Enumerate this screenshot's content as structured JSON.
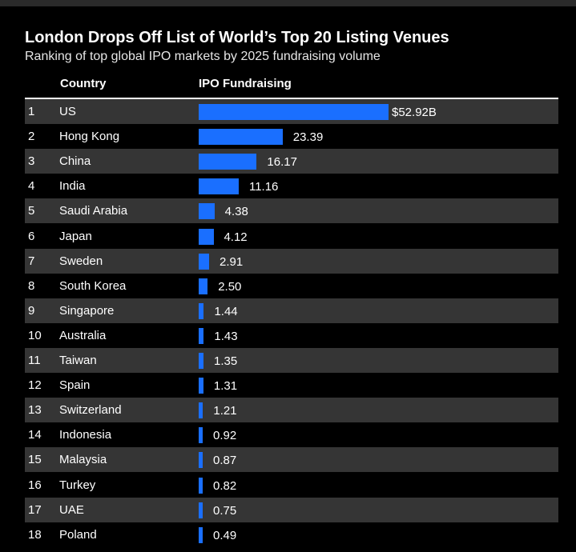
{
  "colors": {
    "background": "#000000",
    "bar": "#1a6fff",
    "row_shade": "#353535",
    "text": "#ffffff"
  },
  "chart_data": {
    "type": "bar",
    "orientation": "horizontal",
    "title": "London Drops Off List of World’s Top 20 Listing Venues",
    "subtitle": "Ranking of top global IPO markets by 2025 fundraising volume",
    "columns": [
      "Country",
      "IPO Fundraising"
    ],
    "unit": "$B",
    "rows": [
      {
        "rank": "1",
        "country": "US",
        "value": 52.92,
        "label": "$52.92B"
      },
      {
        "rank": "2",
        "country": "Hong Kong",
        "value": 23.39,
        "label": "23.39"
      },
      {
        "rank": "3",
        "country": "China",
        "value": 16.17,
        "label": "16.17"
      },
      {
        "rank": "4",
        "country": "India",
        "value": 11.16,
        "label": "11.16"
      },
      {
        "rank": "5",
        "country": "Saudi Arabia",
        "value": 4.38,
        "label": "4.38"
      },
      {
        "rank": "6",
        "country": "Japan",
        "value": 4.12,
        "label": "4.12"
      },
      {
        "rank": "7",
        "country": "Sweden",
        "value": 2.91,
        "label": "2.91"
      },
      {
        "rank": "8",
        "country": "South Korea",
        "value": 2.5,
        "label": "2.50"
      },
      {
        "rank": "9",
        "country": "Singapore",
        "value": 1.44,
        "label": "1.44"
      },
      {
        "rank": "10",
        "country": "Australia",
        "value": 1.43,
        "label": "1.43"
      },
      {
        "rank": "11",
        "country": "Taiwan",
        "value": 1.35,
        "label": "1.35"
      },
      {
        "rank": "12",
        "country": "Spain",
        "value": 1.31,
        "label": "1.31"
      },
      {
        "rank": "13",
        "country": "Switzerland",
        "value": 1.21,
        "label": "1.21"
      },
      {
        "rank": "14",
        "country": "Indonesia",
        "value": 0.92,
        "label": "0.92"
      },
      {
        "rank": "15",
        "country": "Malaysia",
        "value": 0.87,
        "label": "0.87"
      },
      {
        "rank": "16",
        "country": "Turkey",
        "value": 0.82,
        "label": "0.82"
      },
      {
        "rank": "17",
        "country": "UAE",
        "value": 0.75,
        "label": "0.75"
      },
      {
        "rank": "18",
        "country": "Poland",
        "value": 0.49,
        "label": "0.49"
      }
    ]
  }
}
